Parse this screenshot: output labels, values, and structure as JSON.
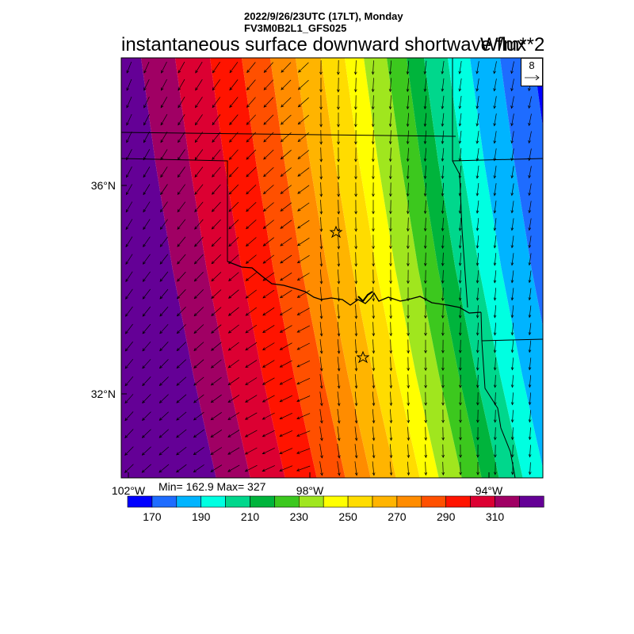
{
  "header": {
    "date_line": "2022/9/26/23UTC (17LT), Monday",
    "model_line": "FV3M0B2L1_GFS025",
    "title": "instantaneous surface downward shortwave flux",
    "units": "W/m**2"
  },
  "map": {
    "region": "Oklahoma / Texas",
    "lat_labels": [
      "36°N",
      "32°N"
    ],
    "lon_labels": [
      "102°W",
      "98°W",
      "94°W"
    ],
    "markers": [
      "station-star",
      "station-star"
    ],
    "wind_vector_reference": "8"
  },
  "stats": {
    "text": "Min= 162.9 Max= 327",
    "min": 162.9,
    "max": 327
  },
  "colorbar": {
    "colors": [
      "#0000ff",
      "#1e6cff",
      "#00b4ff",
      "#00ffe1",
      "#00d78c",
      "#00b43c",
      "#3cc81e",
      "#a0e61e",
      "#ffff00",
      "#ffdc00",
      "#ffb400",
      "#ff8c00",
      "#ff5000",
      "#ff1400",
      "#dc0032",
      "#a00064",
      "#640096"
    ],
    "tick_labels": [
      "170",
      "190",
      "210",
      "230",
      "250",
      "270",
      "290",
      "310"
    ]
  }
}
